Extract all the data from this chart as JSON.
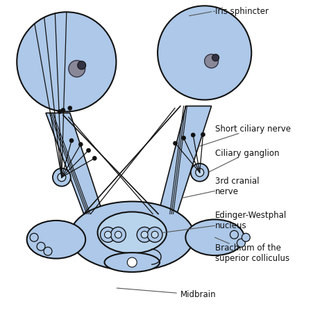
{
  "bg_color": "#ffffff",
  "fill_color": "#adc8e8",
  "outline_color": "#111111",
  "line_color": "#111111",
  "labels": {
    "iris_sphincter": "Iris sphincter",
    "short_ciliary": "Short ciliary nerve",
    "ciliary_ganglion": "Ciliary ganglion",
    "cranial_nerve": "3rd cranial\nnerve",
    "edinger": "Edinger-Westphal\nnucleus",
    "brachium": "Brachium of the\nsuperior colliculus",
    "midbrain": "Midbrain"
  }
}
